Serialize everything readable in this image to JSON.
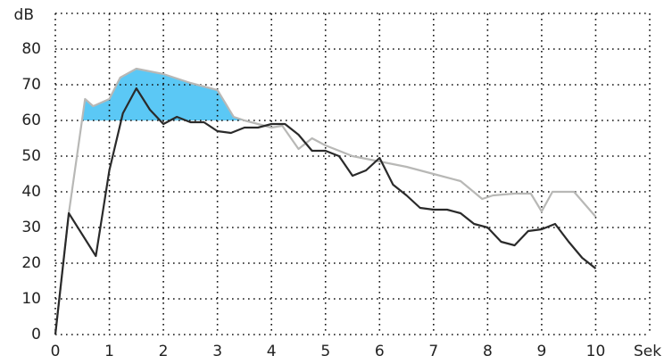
{
  "chart_data": {
    "type": "line",
    "xlabel": "Sek",
    "ylabel": "dB",
    "xlim": [
      0,
      11
    ],
    "ylim": [
      0,
      90
    ],
    "xticks": [
      0,
      1,
      2,
      3,
      4,
      5,
      6,
      7,
      8,
      9,
      10
    ],
    "yticks": [
      0,
      10,
      20,
      30,
      40,
      50,
      60,
      70,
      80
    ],
    "grid": true,
    "highlight_above": 60,
    "highlight_color": "#5bc8f5",
    "series": [
      {
        "color": "#b8b8b6",
        "x": [
          0,
          0.25,
          0.55,
          0.7,
          1.0,
          1.2,
          1.5,
          2.0,
          2.5,
          3.0,
          3.3,
          3.5,
          4.0,
          4.2,
          4.5,
          4.75,
          5.0,
          5.5,
          6.0,
          6.5,
          7.0,
          7.5,
          7.9,
          8.1,
          8.5,
          8.8,
          9.0,
          9.2,
          9.6,
          10.0
        ],
        "values": [
          0,
          34,
          66,
          64,
          66,
          72,
          74.5,
          73,
          70.5,
          68.5,
          61,
          60,
          58,
          58.5,
          52,
          55,
          53,
          50,
          48.5,
          47,
          45,
          43,
          38,
          39,
          39.5,
          39.5,
          34.5,
          40,
          40,
          33
        ]
      },
      {
        "color": "#2a2a2a",
        "x": [
          0,
          0.25,
          0.75,
          1.0,
          1.25,
          1.5,
          1.75,
          2.0,
          2.25,
          2.5,
          2.75,
          3.0,
          3.25,
          3.5,
          3.75,
          4.0,
          4.25,
          4.5,
          4.75,
          5.0,
          5.25,
          5.5,
          5.75,
          6.0,
          6.25,
          6.5,
          6.75,
          7.0,
          7.25,
          7.5,
          7.75,
          8.0,
          8.25,
          8.5,
          8.75,
          9.0,
          9.25,
          9.5,
          9.75,
          10.0
        ],
        "values": [
          0,
          34,
          22,
          46,
          62,
          69,
          63,
          59,
          61,
          59.5,
          59.5,
          57,
          56.5,
          58,
          58,
          59,
          59,
          56,
          51.5,
          51.5,
          50,
          44.5,
          46,
          49.5,
          42,
          39,
          35.5,
          35,
          35,
          34,
          31,
          30,
          26,
          25,
          29,
          29.5,
          31,
          26,
          21.5,
          18.5
        ]
      }
    ]
  }
}
